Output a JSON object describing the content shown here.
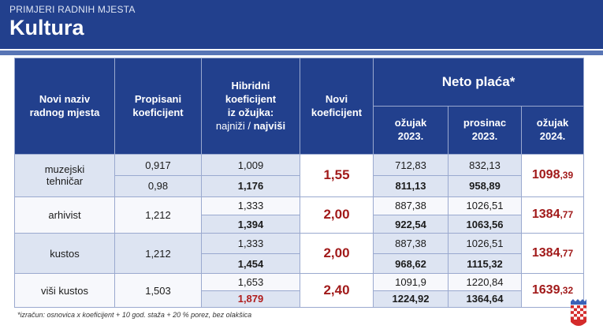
{
  "header": {
    "supertitle": "PRIMJERI RADNIH MJESTA",
    "title": "Kultura"
  },
  "table": {
    "h1": [
      "Novi naziv",
      "radnog mjesta"
    ],
    "h2": [
      "Propisani",
      "koeficijent"
    ],
    "h3": [
      "Hibridni",
      "koeficijent",
      "iz ožujka:",
      "najniži /",
      "najviši"
    ],
    "h4": [
      "Novi",
      "koeficijent"
    ],
    "neto": "Neto plaća*",
    "sub": [
      [
        "ožujak",
        "2023."
      ],
      [
        "prosinac",
        "2023."
      ],
      [
        "ožujak",
        "2024."
      ]
    ],
    "rows": [
      {
        "name": [
          "muzejski",
          "tehničar"
        ],
        "prop": [
          "0,917",
          "0,98"
        ],
        "hyb": [
          "1,009",
          "1,176"
        ],
        "novi": "1,55",
        "m23": [
          "712,83",
          "811,13"
        ],
        "p23": [
          "832,13",
          "958,89"
        ],
        "m24": [
          "1098",
          ",39"
        ]
      },
      {
        "name": [
          "arhivist"
        ],
        "prop": [
          "1,212"
        ],
        "hyb": [
          "1,333",
          "1,394"
        ],
        "novi": "2,00",
        "m23": [
          "887,38",
          "922,54"
        ],
        "p23": [
          "1026,51",
          "1063,56"
        ],
        "m24": [
          "1384",
          ",77"
        ]
      },
      {
        "name": [
          "kustos"
        ],
        "prop": [
          "1,212"
        ],
        "hyb": [
          "1,333",
          "1,454"
        ],
        "novi": "2,00",
        "m23": [
          "887,38",
          "968,62"
        ],
        "p23": [
          "1026,51",
          "1115,32"
        ],
        "m24": [
          "1384",
          ",77"
        ]
      },
      {
        "name": [
          "viši kustos"
        ],
        "prop": [
          "1,503"
        ],
        "hyb": [
          "1,653",
          "1,879"
        ],
        "novi": "2,40",
        "m23": [
          "1091,9",
          "1224,92"
        ],
        "p23": [
          "1220,84",
          "1364,64"
        ],
        "m24": [
          "1639",
          ",32"
        ]
      }
    ]
  },
  "footnote": "*izračun: osnovica x koeficijent + 10 god. staža + 20 % porez, bez olakšica",
  "colors": {
    "header_bg": "#22408d",
    "accent_red": "#a11a1a"
  }
}
